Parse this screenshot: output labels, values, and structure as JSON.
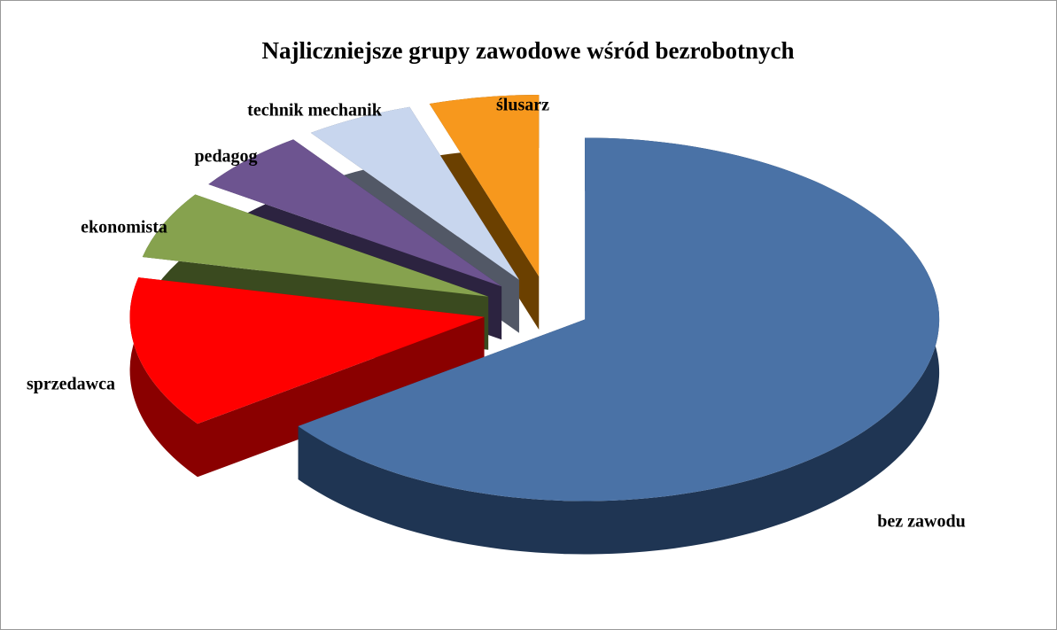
{
  "chart_data": {
    "type": "pie",
    "title": "Najliczniejsze grupy zawodowe wśród bezrobotnych",
    "categories": [
      "bez zawodu",
      "sprzedawca",
      "ekonomista",
      "pedagog",
      "technik mechanik",
      "ślusarz"
    ],
    "values": [
      65,
      13.5,
      6,
      5.5,
      5,
      5
    ],
    "colors": [
      "#4a72a6",
      "#ff0000",
      "#86a24e",
      "#6d5490",
      "#c8d6ee",
      "#f7981d"
    ],
    "side_colors": [
      "#1f3553",
      "#8a0000",
      "#3a4a1f",
      "#2c2340",
      "#525866",
      "#6b4000"
    ]
  }
}
